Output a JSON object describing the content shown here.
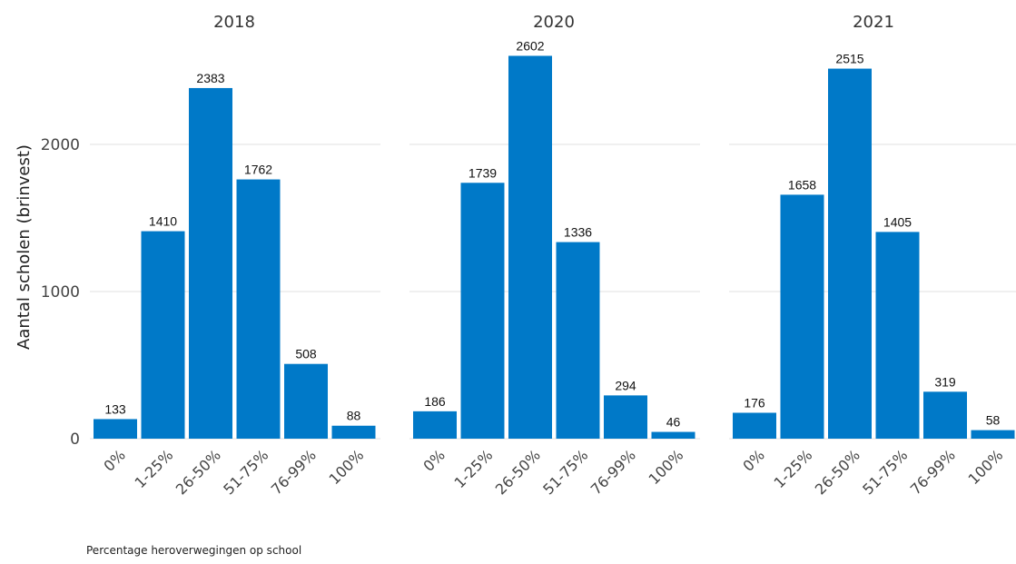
{
  "chart_data": {
    "type": "bar",
    "ylabel": "Aantal scholen (brinvest)",
    "caption": "Percentage heroverwegingen op school",
    "ylim": [
      0,
      2650
    ],
    "yticks": [
      0,
      1000,
      2000
    ],
    "y_tick_labels": [
      "0",
      "1000",
      "2000"
    ],
    "categories": [
      "0%",
      "1-25%",
      "26-50%",
      "51-75%",
      "76-99%",
      "100%"
    ],
    "bar_color": "#0079c8",
    "grid": true,
    "facets": [
      {
        "title": "2018",
        "values": [
          133,
          1410,
          2383,
          1762,
          508,
          88
        ],
        "labels": [
          "133",
          "1410",
          "2383",
          "1762",
          "508",
          "88"
        ]
      },
      {
        "title": "2020",
        "values": [
          186,
          1739,
          2602,
          1336,
          294,
          46
        ],
        "labels": [
          "186",
          "1739",
          "2602",
          "1336",
          "294",
          "46"
        ]
      },
      {
        "title": "2021",
        "values": [
          176,
          1658,
          2515,
          1405,
          319,
          58
        ],
        "labels": [
          "176",
          "1658",
          "2515",
          "1405",
          "319",
          "58"
        ]
      }
    ]
  }
}
